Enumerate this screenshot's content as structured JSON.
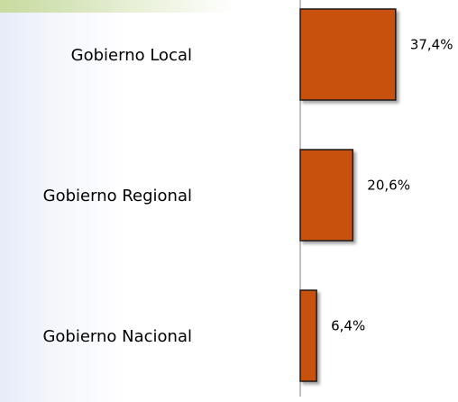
{
  "chart_data": {
    "type": "bar",
    "orientation": "horizontal",
    "categories": [
      "Gobierno Local",
      "Gobierno Regional",
      "Gobierno Nacional"
    ],
    "values": [
      37.4,
      20.6,
      6.4
    ],
    "value_labels": [
      "37,4%",
      "20,6%",
      "6,4%"
    ],
    "color": "#c8510a"
  }
}
